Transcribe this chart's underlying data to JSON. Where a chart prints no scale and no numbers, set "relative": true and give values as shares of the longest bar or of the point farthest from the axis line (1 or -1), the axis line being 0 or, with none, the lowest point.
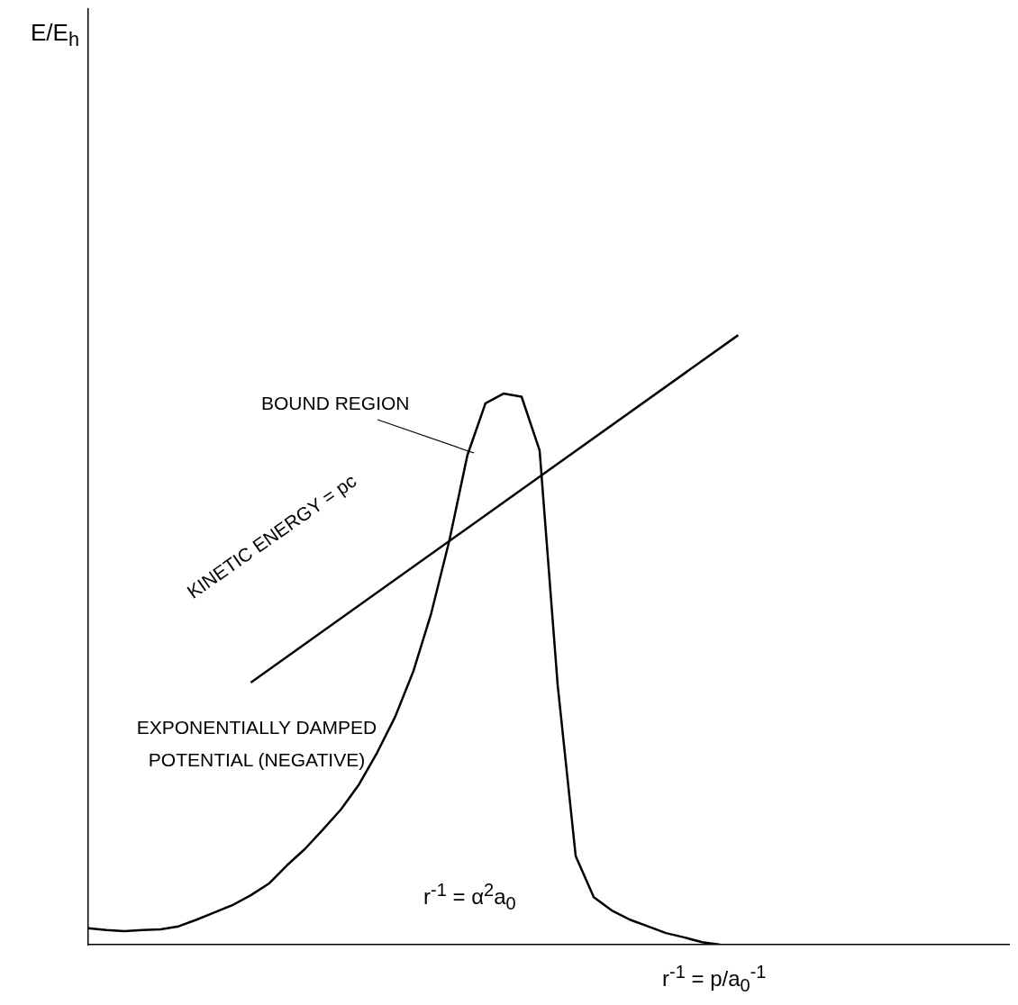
{
  "chart_data": {
    "type": "line",
    "relative": true,
    "xlabel": "r$^{-1}$ = p/a$_{0}$$^{-1}$",
    "categories": [
      null,
      null,
      null,
      null,
      null,
      null,
      null,
      null,
      null,
      null,
      null,
      null,
      null,
      null,
      null,
      null,
      null,
      null,
      null,
      null,
      null,
      null,
      null,
      null,
      null,
      null,
      null,
      null,
      null,
      null,
      null,
      null,
      null,
      null,
      null,
      null,
      null,
      null,
      null,
      null,
      null,
      null,
      null,
      null,
      null,
      null,
      null,
      null,
      null,
      null,
      null,
      null
    ],
    "series": [
      {
        "color": "#000000",
        "values": [
          0.027,
          0.024,
          0.022,
          0.024,
          0.025,
          0.03,
          0.041,
          0.053,
          0.065,
          0.081,
          0.1,
          0.13,
          0.157,
          0.189,
          0.222,
          0.263,
          0.315,
          0.374,
          0.448,
          0.544,
          0.663,
          0.803,
          0.888,
          0.904,
          0.899,
          0.811,
          0.426,
          0.145,
          0.078,
          0.056,
          0.041,
          0.03,
          0.019,
          0.012,
          0.004,
          0,
          null,
          null,
          null,
          null,
          null,
          null,
          null,
          null,
          null,
          null,
          null,
          null,
          null,
          null,
          null,
          null
        ]
      },
      {
        "color": "#000000",
        "values": [
          null,
          null,
          null,
          null,
          null,
          null,
          null,
          null,
          null,
          0.43,
          null,
          null,
          null,
          null,
          null,
          null,
          null,
          null,
          null,
          null,
          null,
          null,
          null,
          null,
          null,
          null,
          null,
          null,
          null,
          null,
          null,
          null,
          null,
          null,
          null,
          null,
          1.0,
          null,
          null,
          null,
          null,
          null,
          null,
          null,
          null,
          null,
          null,
          null,
          null,
          null,
          null,
          null
        ]
      }
    ],
    "annotations": [
      "BOUND REGION",
      "KINETIC ENERGY = pc",
      "EXPONENTIALLY DAMPED POTENTIAL (NEGATIVE)",
      "r$^{-1}$ = α$^{2}$a$_{0}$",
      "E/E$_{h}$"
    ],
    "grid": false,
    "legend": false,
    "marker": "none"
  }
}
